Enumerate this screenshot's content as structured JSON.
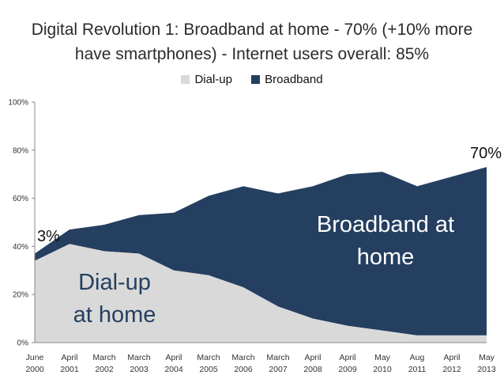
{
  "chart_data": {
    "type": "area",
    "stacked": true,
    "title": [
      "Digital Revolution 1: Broadband at home - 70% (+10% more",
      "have smartphones) - Internet users overall: 85%"
    ],
    "xlabel": "",
    "ylabel": "",
    "ylim": [
      0,
      100
    ],
    "y_ticks": [
      "0%",
      "20%",
      "40%",
      "60%",
      "80%",
      "100%"
    ],
    "y_tick_values": [
      0,
      20,
      40,
      60,
      80,
      100
    ],
    "legend_position": "top-center",
    "categories": [
      [
        "June",
        "2000"
      ],
      [
        "April",
        "2001"
      ],
      [
        "March",
        "2002"
      ],
      [
        "March",
        "2003"
      ],
      [
        "April",
        "2004"
      ],
      [
        "March",
        "2005"
      ],
      [
        "March",
        "2006"
      ],
      [
        "March",
        "2007"
      ],
      [
        "April",
        "2008"
      ],
      [
        "April",
        "2009"
      ],
      [
        "May",
        "2010"
      ],
      [
        "Aug",
        "2011"
      ],
      [
        "April",
        "2012"
      ],
      [
        "May",
        "2013"
      ]
    ],
    "series": [
      {
        "name": "Dial-up",
        "color": "#d9d9d9",
        "values": [
          34,
          41,
          38,
          37,
          30,
          28,
          23,
          15,
          10,
          7,
          5,
          3,
          3,
          3
        ]
      },
      {
        "name": "Broadband",
        "color": "#243f60",
        "values": [
          3,
          6,
          11,
          16,
          24,
          33,
          42,
          47,
          55,
          63,
          66,
          62,
          66,
          70
        ]
      }
    ],
    "annotations": {
      "start_broadband": "3%",
      "end_broadband": "70%",
      "dialup_label": [
        "Dial-up",
        "at home"
      ],
      "broadband_label": [
        "Broadband at",
        "home"
      ]
    }
  }
}
